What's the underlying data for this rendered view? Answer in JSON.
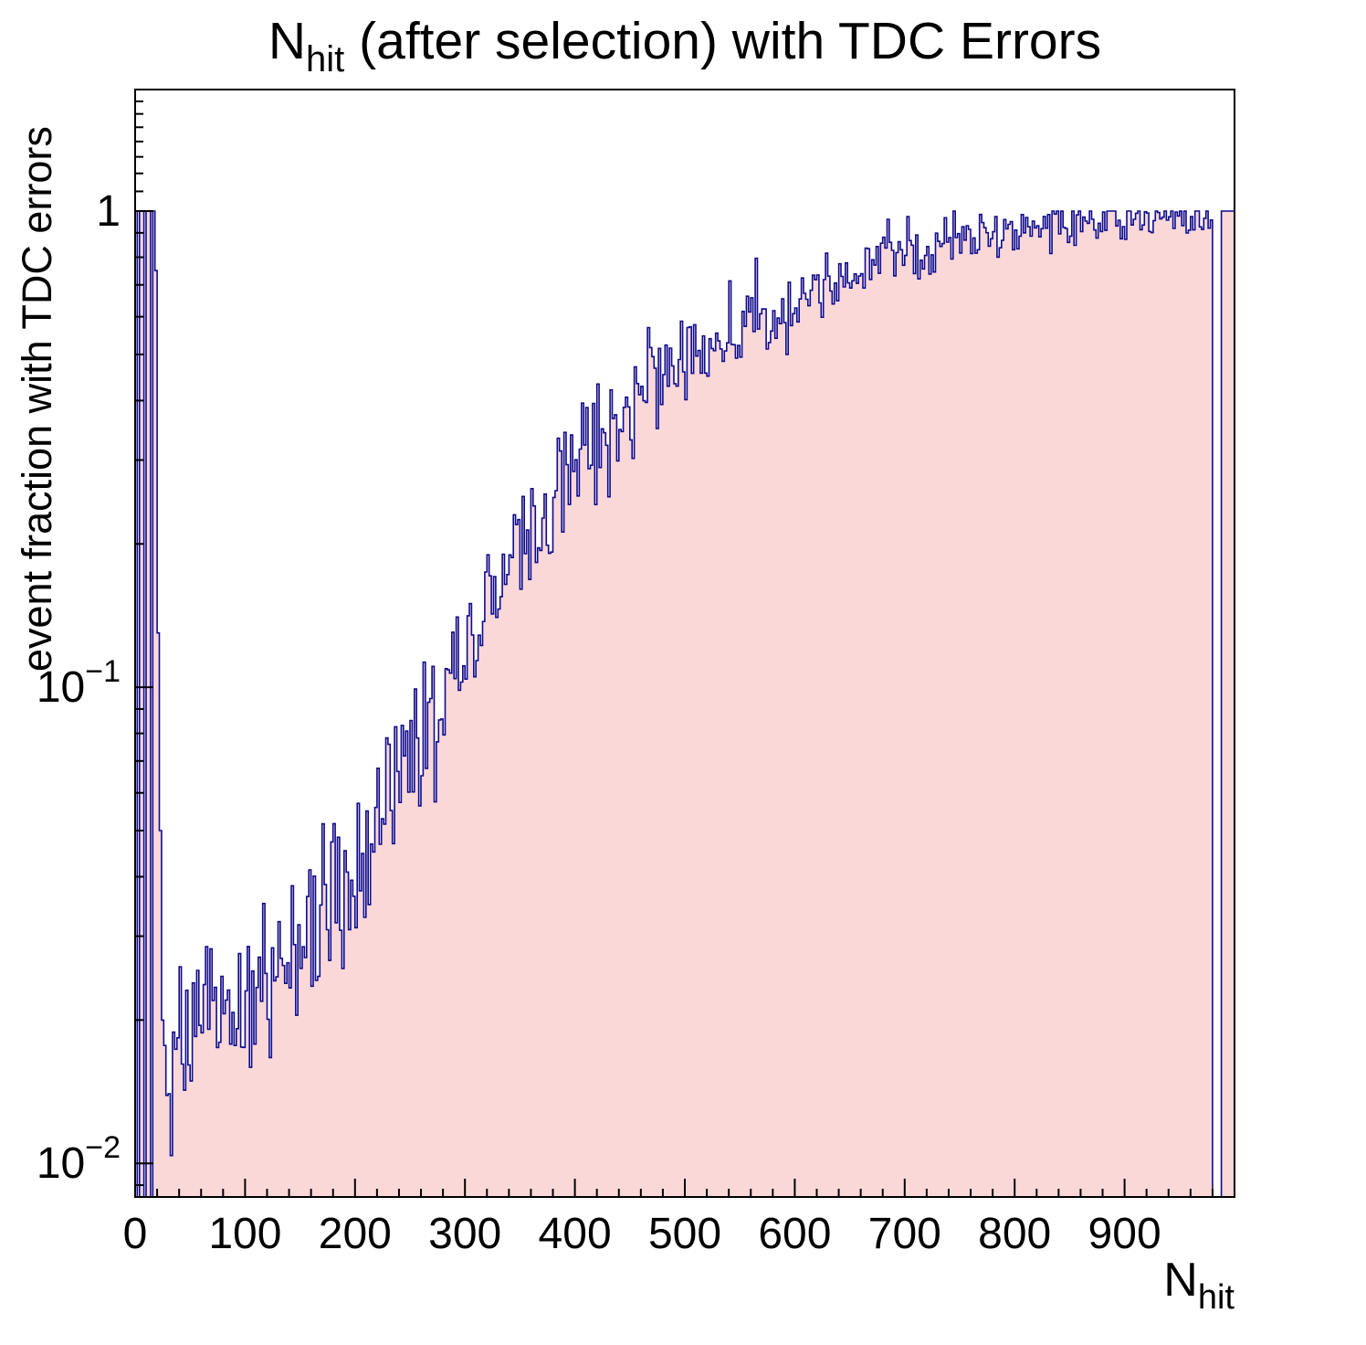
{
  "title": {
    "prefix": "N",
    "sub": "hit",
    "rest": " (after selection) with TDC Errors"
  },
  "axes": {
    "y_label": "event fraction with TDC errors",
    "x_label_prefix": "N",
    "x_label_sub": "hit",
    "x": {
      "min": 0,
      "max": 1000,
      "major_step": 100,
      "minor_step": 20,
      "tick_labels": [
        {
          "v": 0,
          "text": "0"
        },
        {
          "v": 100,
          "text": "100"
        },
        {
          "v": 200,
          "text": "200"
        },
        {
          "v": 300,
          "text": "300"
        },
        {
          "v": 400,
          "text": "400"
        },
        {
          "v": 500,
          "text": "500"
        },
        {
          "v": 600,
          "text": "600"
        },
        {
          "v": 700,
          "text": "700"
        },
        {
          "v": 800,
          "text": "800"
        },
        {
          "v": 900,
          "text": "900"
        }
      ]
    },
    "y": {
      "scale": "log",
      "min": 0.0085,
      "max": 1.8,
      "tick_labels": [
        {
          "v": 1,
          "base": "1",
          "exp": ""
        },
        {
          "v": 0.1,
          "base": "10",
          "exp": "−1"
        },
        {
          "v": 0.01,
          "base": "10",
          "exp": "−2"
        }
      ]
    }
  },
  "style": {
    "fill_color": "#fbd8d8",
    "line_color": "#0c0c8f",
    "frame_color": "#000000",
    "text_color": "#000000",
    "background": "#ffffff"
  },
  "chart_data": {
    "type": "area",
    "title": "N_hit (after selection) with TDC Errors",
    "xlabel": "N_hit",
    "ylabel": "event fraction with TDC errors",
    "x_range": [
      0,
      1000
    ],
    "y_range": [
      0.0085,
      1.8
    ],
    "y_scale": "log",
    "grid": false,
    "legend": "none",
    "bin_width": 2,
    "left_spike_bins": [
      [
        0,
        1
      ],
      [
        2,
        0
      ],
      [
        4,
        1
      ],
      [
        6,
        1
      ],
      [
        8,
        0
      ],
      [
        10,
        1
      ],
      [
        12,
        1
      ],
      [
        14,
        0
      ],
      [
        16,
        1
      ],
      [
        18,
        0.75
      ],
      [
        20,
        0.13
      ],
      [
        22,
        0.05
      ],
      [
        24,
        0.02
      ]
    ],
    "trend_anchors": [
      [
        26,
        0.017
      ],
      [
        40,
        0.0185
      ],
      [
        60,
        0.019
      ],
      [
        80,
        0.0195
      ],
      [
        100,
        0.021
      ],
      [
        110,
        0.022
      ],
      [
        120,
        0.024
      ],
      [
        130,
        0.0235
      ],
      [
        140,
        0.027
      ],
      [
        150,
        0.029
      ],
      [
        160,
        0.031
      ],
      [
        170,
        0.034
      ],
      [
        180,
        0.036
      ],
      [
        190,
        0.039
      ],
      [
        200,
        0.042
      ],
      [
        210,
        0.046
      ],
      [
        220,
        0.05
      ],
      [
        230,
        0.055
      ],
      [
        240,
        0.06
      ],
      [
        250,
        0.066
      ],
      [
        260,
        0.074
      ],
      [
        270,
        0.082
      ],
      [
        280,
        0.092
      ],
      [
        290,
        0.105
      ],
      [
        300,
        0.118
      ],
      [
        310,
        0.132
      ],
      [
        320,
        0.15
      ],
      [
        330,
        0.163
      ],
      [
        340,
        0.175
      ],
      [
        350,
        0.19
      ],
      [
        360,
        0.205
      ],
      [
        370,
        0.222
      ],
      [
        380,
        0.24
      ],
      [
        390,
        0.26
      ],
      [
        400,
        0.285
      ],
      [
        410,
        0.305
      ],
      [
        420,
        0.325
      ],
      [
        430,
        0.345
      ],
      [
        440,
        0.365
      ],
      [
        450,
        0.39
      ],
      [
        460,
        0.41
      ],
      [
        470,
        0.425
      ],
      [
        480,
        0.44
      ],
      [
        490,
        0.455
      ],
      [
        500,
        0.47
      ],
      [
        520,
        0.5
      ],
      [
        540,
        0.535
      ],
      [
        560,
        0.57
      ],
      [
        580,
        0.61
      ],
      [
        600,
        0.65
      ],
      [
        620,
        0.69
      ],
      [
        640,
        0.725
      ],
      [
        660,
        0.755
      ],
      [
        680,
        0.785
      ],
      [
        700,
        0.815
      ],
      [
        720,
        0.845
      ],
      [
        740,
        0.87
      ],
      [
        760,
        0.89
      ],
      [
        780,
        0.905
      ],
      [
        800,
        0.92
      ],
      [
        820,
        0.93
      ],
      [
        840,
        0.94
      ],
      [
        860,
        0.948
      ],
      [
        880,
        0.953
      ],
      [
        900,
        0.958
      ],
      [
        920,
        0.962
      ],
      [
        940,
        0.966
      ],
      [
        960,
        0.97
      ],
      [
        980,
        0.972
      ]
    ],
    "right_gap": [
      980,
      988
    ],
    "right_plateau": {
      "start": 988,
      "end": 1000,
      "value": 1.0
    },
    "noise_sigma_log10": 0.085,
    "seed": 424242
  }
}
